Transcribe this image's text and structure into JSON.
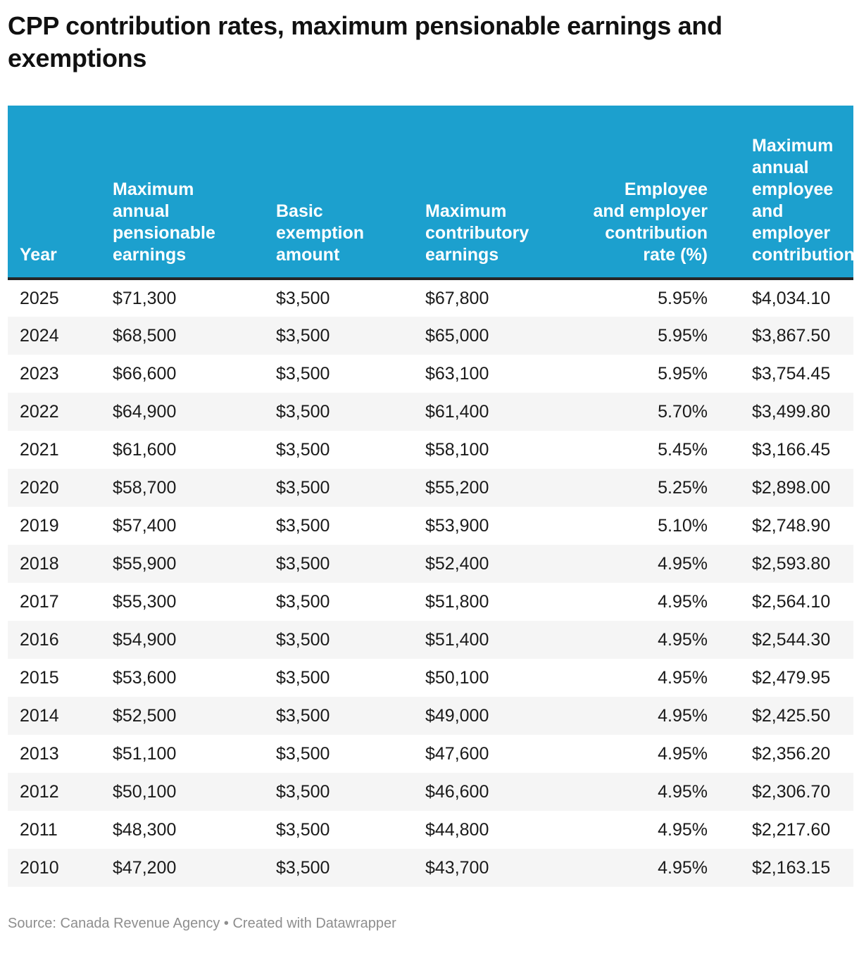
{
  "title": "CPP contribution rates, maximum pensionable earnings and exemptions",
  "chart_data": {
    "type": "table",
    "title": "CPP contribution rates, maximum pensionable earnings and exemptions",
    "columns": [
      "Year",
      "Maximum annual pensionable earnings",
      "Basic exemption amount",
      "Maximum contributory earnings",
      "Employee and employer contribution rate (%)",
      "Maximum annual employee and employer contribution"
    ],
    "column_align": [
      "left",
      "left",
      "left",
      "left",
      "right",
      "left"
    ],
    "rows": [
      [
        "2025",
        "$71,300",
        "$3,500",
        "$67,800",
        "5.95%",
        "$4,034.10"
      ],
      [
        "2024",
        "$68,500",
        "$3,500",
        "$65,000",
        "5.95%",
        "$3,867.50"
      ],
      [
        "2023",
        "$66,600",
        "$3,500",
        "$63,100",
        "5.95%",
        "$3,754.45"
      ],
      [
        "2022",
        "$64,900",
        "$3,500",
        "$61,400",
        "5.70%",
        "$3,499.80"
      ],
      [
        "2021",
        "$61,600",
        "$3,500",
        "$58,100",
        "5.45%",
        "$3,166.45"
      ],
      [
        "2020",
        "$58,700",
        "$3,500",
        "$55,200",
        "5.25%",
        "$2,898.00"
      ],
      [
        "2019",
        "$57,400",
        "$3,500",
        "$53,900",
        "5.10%",
        "$2,748.90"
      ],
      [
        "2018",
        "$55,900",
        "$3,500",
        "$52,400",
        "4.95%",
        "$2,593.80"
      ],
      [
        "2017",
        "$55,300",
        "$3,500",
        "$51,800",
        "4.95%",
        "$2,564.10"
      ],
      [
        "2016",
        "$54,900",
        "$3,500",
        "$51,400",
        "4.95%",
        "$2,544.30"
      ],
      [
        "2015",
        "$53,600",
        "$3,500",
        "$50,100",
        "4.95%",
        "$2,479.95"
      ],
      [
        "2014",
        "$52,500",
        "$3,500",
        "$49,000",
        "4.95%",
        "$2,425.50"
      ],
      [
        "2013",
        "$51,100",
        "$3,500",
        "$47,600",
        "4.95%",
        "$2,356.20"
      ],
      [
        "2012",
        "$50,100",
        "$3,500",
        "$46,600",
        "4.95%",
        "$2,306.70"
      ],
      [
        "2011",
        "$48,300",
        "$3,500",
        "$44,800",
        "4.95%",
        "$2,217.60"
      ],
      [
        "2010",
        "$47,200",
        "$3,500",
        "$43,700",
        "4.95%",
        "$2,163.15"
      ]
    ],
    "striped": true,
    "legend_position": "none",
    "grid": false
  },
  "footer": {
    "source_label": "Source:",
    "source_name": "Canada Revenue Agency",
    "separator": "•",
    "credit": "Created with Datawrapper"
  },
  "colors": {
    "header_background": "#1CA0CE",
    "header_text": "#FFFFFF",
    "header_border": "#262626",
    "row_stripe": "#F5F5F5",
    "body_text": "#1A1A1A",
    "title_text": "#111111",
    "footer_text": "#8E8E8E"
  }
}
